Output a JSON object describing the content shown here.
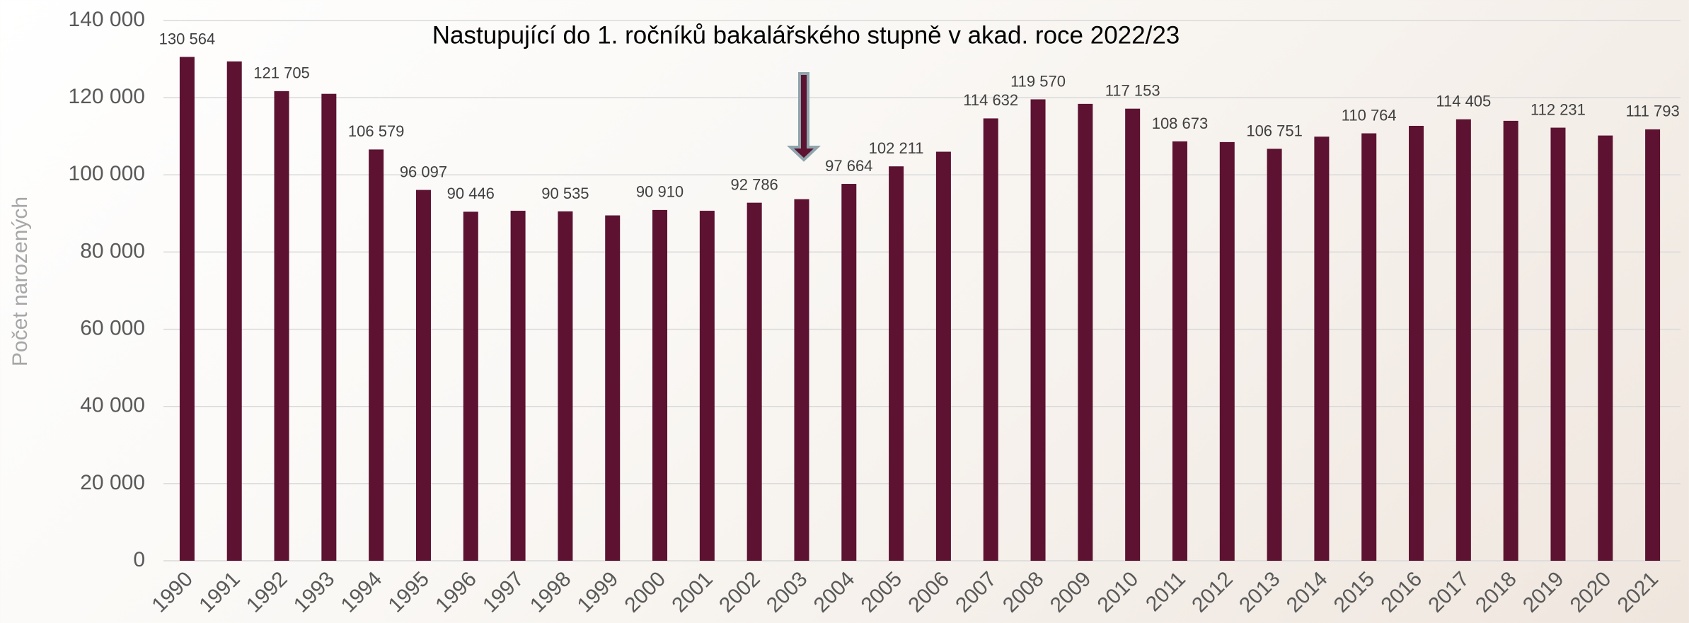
{
  "chart_data": {
    "type": "bar",
    "title": "Nastupující do 1. ročníků bakalářského stupně v akad. roce 2022/23",
    "y_label": "Počet narozených",
    "color": "#5c1230",
    "grid": true,
    "categories": [
      "1990",
      "1991",
      "1992",
      "1993",
      "1994",
      "1995",
      "1996",
      "1997",
      "1998",
      "1999",
      "2000",
      "2001",
      "2002",
      "2003",
      "2004",
      "2005",
      "2006",
      "2007",
      "2008",
      "2009",
      "2010",
      "2011",
      "2012",
      "2013",
      "2014",
      "2015",
      "2016",
      "2017",
      "2018",
      "2019",
      "2020",
      "2021"
    ],
    "values": [
      130564,
      129400,
      121705,
      121000,
      106579,
      96097,
      90446,
      90700,
      90535,
      89500,
      90910,
      90700,
      92786,
      93700,
      97664,
      102211,
      106000,
      114632,
      119570,
      118400,
      117153,
      108673,
      108500,
      106751,
      109900,
      110764,
      112700,
      114405,
      114000,
      112231,
      110200,
      111793
    ],
    "value_labels": [
      "130 564",
      null,
      "121 705",
      null,
      "106 579",
      "96 097",
      "90 446",
      null,
      "90 535",
      null,
      "90 910",
      null,
      "92 786",
      null,
      "97 664",
      "102 211",
      null,
      "114 632",
      "119 570",
      null,
      "117 153",
      "108 673",
      null,
      "106 751",
      null,
      "110 764",
      null,
      "114 405",
      null,
      "112 231",
      null,
      "111 793"
    ],
    "ylim": [
      0,
      140000
    ],
    "yticks": [
      0,
      {
        "value": 20000,
        "label": "20 000"
      },
      {
        "value": 40000,
        "label": "40 000"
      },
      {
        "value": 60000,
        "label": "60 000"
      },
      {
        "value": 80000,
        "label": "80 000"
      },
      {
        "value": 100000,
        "label": "100 000"
      },
      {
        "value": 120000,
        "label": "120 000"
      },
      {
        "value": 140000,
        "label": "140 000"
      }
    ]
  }
}
